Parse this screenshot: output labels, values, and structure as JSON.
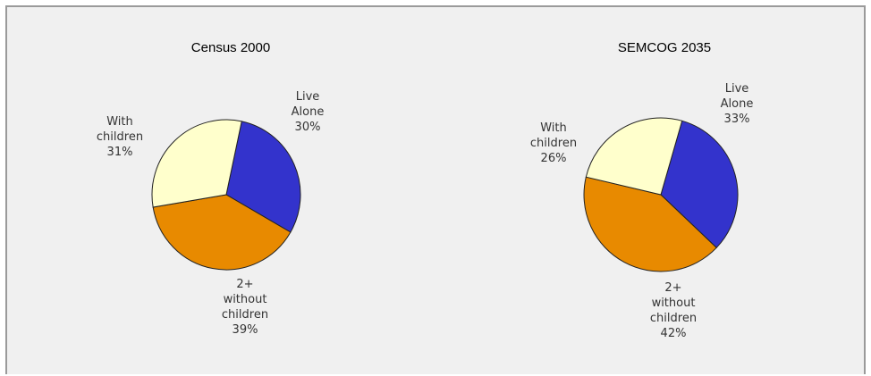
{
  "chart_data": [
    {
      "type": "pie",
      "title": "Census 2000",
      "slices": [
        {
          "label": [
            "Live",
            "Alone",
            "30%"
          ],
          "value": 30,
          "color": "#3333cc"
        },
        {
          "label": [
            "2+",
            "without",
            "children",
            "39%"
          ],
          "value": 39,
          "color": "#e88a00"
        },
        {
          "label": [
            "With",
            "children",
            "31%"
          ],
          "value": 31,
          "color": "#ffffcc"
        }
      ]
    },
    {
      "type": "pie",
      "title": "SEMCOG 2035",
      "slices": [
        {
          "label": [
            "Live",
            "Alone",
            "33%"
          ],
          "value": 33,
          "color": "#3333cc"
        },
        {
          "label": [
            "2+",
            "without",
            "children",
            "42%"
          ],
          "value": 42,
          "color": "#e88a00"
        },
        {
          "label": [
            "With",
            "children",
            "26%"
          ],
          "value": 26,
          "color": "#ffffcc"
        }
      ]
    }
  ]
}
